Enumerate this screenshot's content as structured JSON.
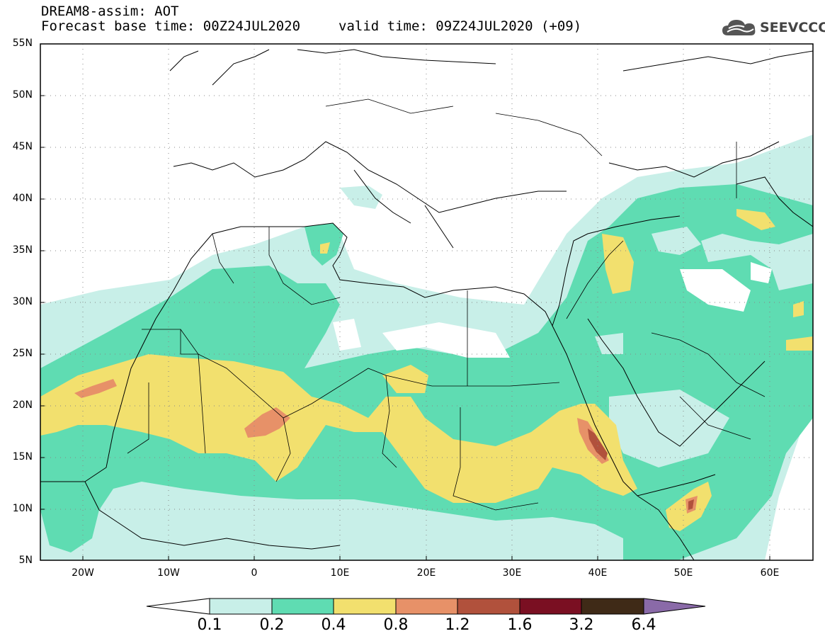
{
  "header": {
    "title_line1": "DREAM8-assim: AOT",
    "title_line2": "Forecast base time: 00Z24JUL2020",
    "valid_time": "valid time: 09Z24JUL2020 (+09)",
    "logo_text": "SEEVCCC",
    "logo_icon": "cloud-icon"
  },
  "map": {
    "extent": {
      "lon_min": -25,
      "lon_max": 65,
      "lat_min": 5,
      "lat_max": 55
    },
    "grid": "dotted",
    "lat_ticks": [
      "55N",
      "50N",
      "45N",
      "40N",
      "35N",
      "30N",
      "25N",
      "20N",
      "15N",
      "10N",
      "5N"
    ],
    "lon_ticks": [
      "20W",
      "10W",
      "0",
      "10E",
      "20E",
      "30E",
      "40E",
      "50E",
      "60E"
    ]
  },
  "colorbar": {
    "labels": [
      "0.1",
      "0.2",
      "0.4",
      "0.8",
      "1.2",
      "1.6",
      "3.2",
      "6.4"
    ],
    "colors": [
      "#c8efe8",
      "#5fdcb2",
      "#f2e06e",
      "#e79168",
      "#b1513c",
      "#7a0f22",
      "#3f2a17"
    ],
    "low_color": "#ffffff",
    "high_color": "#8a6aa8"
  }
}
